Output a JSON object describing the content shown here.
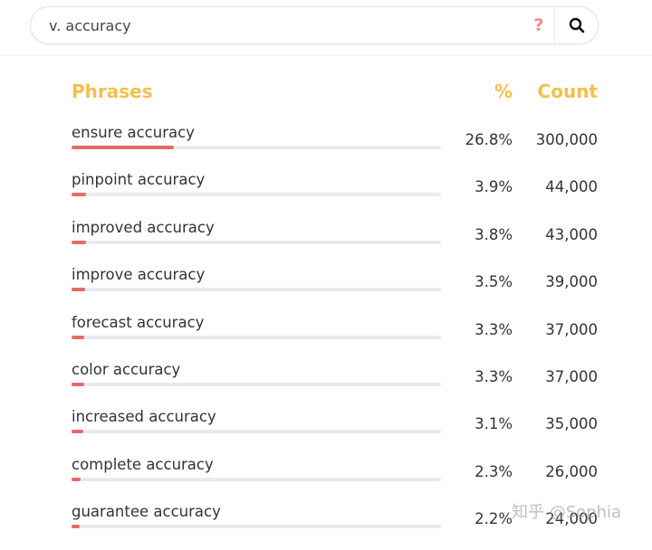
{
  "search": {
    "value": "v. accuracy",
    "help_glyph": "?"
  },
  "table": {
    "headers": {
      "phrases": "Phrases",
      "percent": "%",
      "count": "Count"
    },
    "rows": [
      {
        "phrase": "ensure accuracy",
        "percent": "26.8%",
        "count": "300,000",
        "share": 0.268
      },
      {
        "phrase": "pinpoint accuracy",
        "percent": "3.9%",
        "count": "44,000",
        "share": 0.039
      },
      {
        "phrase": "improved accuracy",
        "percent": "3.8%",
        "count": "43,000",
        "share": 0.038
      },
      {
        "phrase": "improve accuracy",
        "percent": "3.5%",
        "count": "39,000",
        "share": 0.035
      },
      {
        "phrase": "forecast accuracy",
        "percent": "3.3%",
        "count": "37,000",
        "share": 0.033
      },
      {
        "phrase": "color accuracy",
        "percent": "3.3%",
        "count": "37,000",
        "share": 0.033
      },
      {
        "phrase": "increased accuracy",
        "percent": "3.1%",
        "count": "35,000",
        "share": 0.031
      },
      {
        "phrase": "complete accuracy",
        "percent": "2.3%",
        "count": "26,000",
        "share": 0.023
      },
      {
        "phrase": "guarantee accuracy",
        "percent": "2.2%",
        "count": "24,000",
        "share": 0.022
      }
    ]
  },
  "watermark": "知乎 @Sophia",
  "colors": {
    "accent": "#f2c04b",
    "bar_fill": "#e56a6a",
    "bar_track": "#e9eaee",
    "help": "#ef8a8a"
  }
}
